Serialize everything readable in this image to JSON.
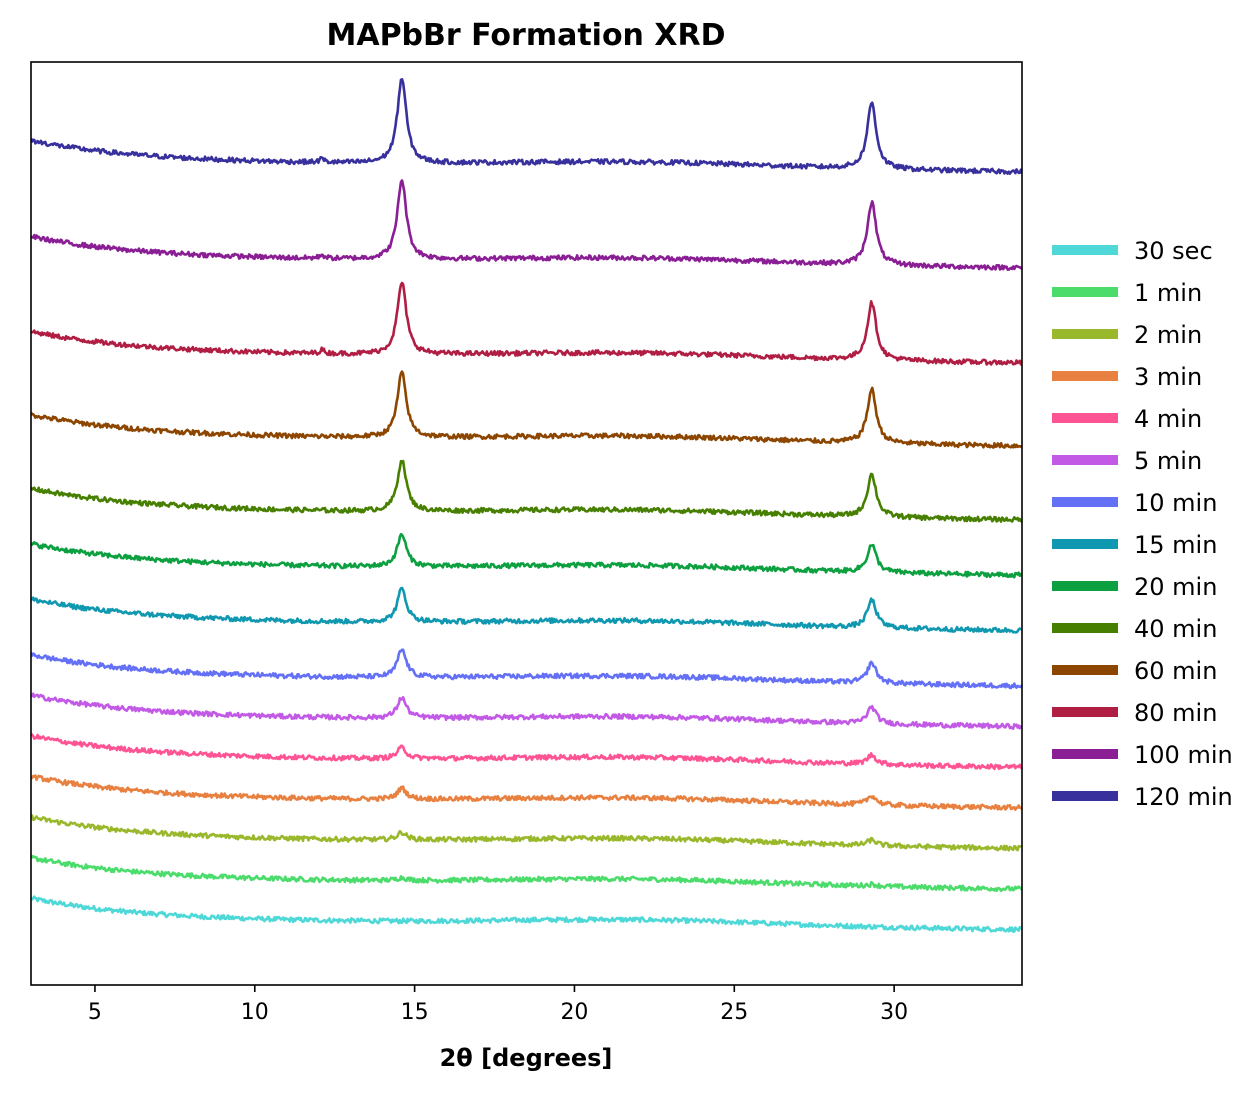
{
  "chart_data": {
    "type": "line",
    "title": "MAPbBr Formation XRD",
    "xlabel": "2θ [degrees]",
    "ylabel": "",
    "xlim": [
      3,
      34
    ],
    "ylim": [
      0,
      1
    ],
    "xticks": [
      5,
      10,
      15,
      20,
      25,
      30
    ],
    "xtick_labels": [
      "5",
      "10",
      "15",
      "20",
      "25",
      "30"
    ],
    "y_ticks_shown": false,
    "grid": false,
    "legend_position": "right",
    "peak_positions": [
      14.6,
      29.3
    ],
    "series": [
      {
        "name": "30 sec",
        "color": "#4fd8d8",
        "offset": 0.072,
        "peak1": 0.0,
        "peak2": 0.0
      },
      {
        "name": "1 min",
        "color": "#4cdc6c",
        "offset": 0.116,
        "peak1": 0.003,
        "peak2": 0.002
      },
      {
        "name": "2 min",
        "color": "#9ab82c",
        "offset": 0.16,
        "peak1": 0.008,
        "peak2": 0.006
      },
      {
        "name": "3 min",
        "color": "#e88040",
        "offset": 0.204,
        "peak1": 0.012,
        "peak2": 0.01
      },
      {
        "name": "4 min",
        "color": "#ff5494",
        "offset": 0.248,
        "peak1": 0.012,
        "peak2": 0.01
      },
      {
        "name": "5 min",
        "color": "#c25ae6",
        "offset": 0.292,
        "peak1": 0.022,
        "peak2": 0.018
      },
      {
        "name": "10 min",
        "color": "#6470f6",
        "offset": 0.336,
        "peak1": 0.03,
        "peak2": 0.022
      },
      {
        "name": "15 min",
        "color": "#1098b0",
        "offset": 0.396,
        "peak1": 0.036,
        "peak2": 0.03
      },
      {
        "name": "20 min",
        "color": "#0da040",
        "offset": 0.456,
        "peak1": 0.035,
        "peak2": 0.03
      },
      {
        "name": "40 min",
        "color": "#478000",
        "offset": 0.516,
        "peak1": 0.055,
        "peak2": 0.046
      },
      {
        "name": "60 min",
        "color": "#8c4600",
        "offset": 0.596,
        "peak1": 0.07,
        "peak2": 0.058
      },
      {
        "name": "80 min",
        "color": "#b01e44",
        "offset": 0.686,
        "peak1": 0.078,
        "peak2": 0.062
      },
      {
        "name": "100 min",
        "color": "#8a1e94",
        "offset": 0.789,
        "peak1": 0.086,
        "peak2": 0.068
      },
      {
        "name": "120 min",
        "color": "#38309c",
        "offset": 0.893,
        "peak1": 0.092,
        "peak2": 0.072
      }
    ]
  }
}
